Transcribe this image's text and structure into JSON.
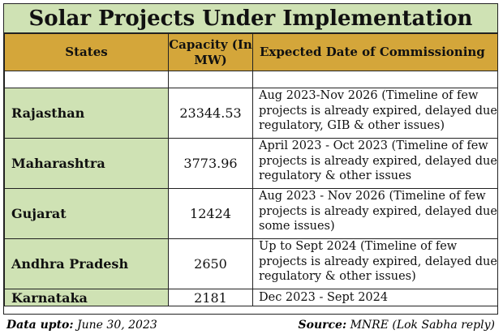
{
  "title": "Solar Projects Under Implementation",
  "headers": {
    "states": "States",
    "capacity": "Capacity (In MW)",
    "date": "Expected Date of Commissioning"
  },
  "rows": [
    {
      "state": "Rajasthan",
      "capacity": "23344.53",
      "date": "Aug 2023-Nov 2026 (Timeline of few projects is already expired, delayed due regulatory, GIB & other issues)"
    },
    {
      "state": "Maharashtra",
      "capacity": "3773.96",
      "date": "April 2023 - Oct 2023 (Timeline of few projects is already expired, delayed due regulatory & other issues"
    },
    {
      "state": "Gujarat",
      "capacity": "12424",
      "date": "Aug 2023 - Nov 2026 (Timeline of few projects is already expired, delayed due some issues)"
    },
    {
      "state": "Andhra Pradesh",
      "capacity": "2650",
      "date": "Up to Sept 2024 (Timeline of few projects is already expired, delayed due regulatory & other issues)"
    },
    {
      "state": "Karnataka",
      "capacity": "2181",
      "date": "Dec 2023 - Sept 2024"
    }
  ],
  "footer": {
    "data_label": "Data upto:",
    "data_value": "June 30, 2023",
    "source_label": "Source:",
    "source_value": "MNRE (Lok Sabha reply)"
  },
  "colors": {
    "title_bg": "#cfe2b4",
    "header_bg": "#d4a63a",
    "state_bg": "#cfe2b4"
  }
}
